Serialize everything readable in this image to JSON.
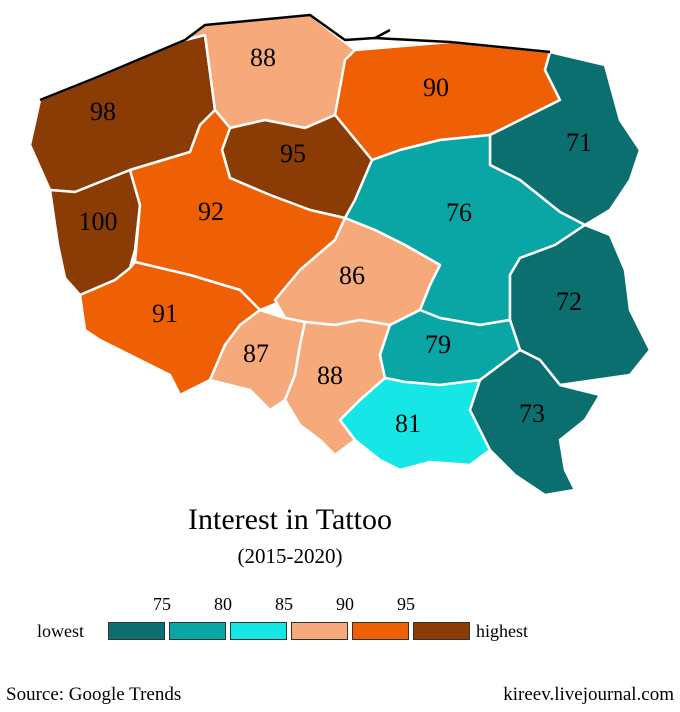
{
  "title": "Interest in Tattoo",
  "subtitle": "(2015-2020)",
  "source": "Source: Google Trends",
  "credit": "kireev.livejournal.com",
  "legend": {
    "low_label": "lowest",
    "high_label": "highest",
    "ticks": [
      "75",
      "80",
      "85",
      "90",
      "95"
    ],
    "colors": [
      "#0b6f6f",
      "#0aa6a6",
      "#16e6e6",
      "#f6a97a",
      "#ef5f04",
      "#8b3c05"
    ]
  },
  "regions": [
    {
      "id": "west-pomeranian",
      "value": "98",
      "color": "#8b3c05"
    },
    {
      "id": "pomeranian",
      "value": "88",
      "color": "#f6a97a"
    },
    {
      "id": "warmian-masurian",
      "value": "90",
      "color": "#ef5f04"
    },
    {
      "id": "podlaskie",
      "value": "71",
      "color": "#0b6f6f"
    },
    {
      "id": "kuyavian-pomeranian",
      "value": "95",
      "color": "#8b3c05"
    },
    {
      "id": "lubusz",
      "value": "100",
      "color": "#8b3c05"
    },
    {
      "id": "greater-poland",
      "value": "92",
      "color": "#ef5f04"
    },
    {
      "id": "masovian",
      "value": "76",
      "color": "#0aa6a6"
    },
    {
      "id": "lodz",
      "value": "86",
      "color": "#f6a97a"
    },
    {
      "id": "lublin",
      "value": "72",
      "color": "#0b6f6f"
    },
    {
      "id": "lower-silesian",
      "value": "91",
      "color": "#ef5f04"
    },
    {
      "id": "opole",
      "value": "87",
      "color": "#f6a97a"
    },
    {
      "id": "silesian",
      "value": "88",
      "color": "#f6a97a"
    },
    {
      "id": "swietokrzyskie",
      "value": "79",
      "color": "#0aa6a6"
    },
    {
      "id": "lesser-poland",
      "value": "81",
      "color": "#16e6e6"
    },
    {
      "id": "subcarpathian",
      "value": "73",
      "color": "#0b6f6f"
    }
  ]
}
